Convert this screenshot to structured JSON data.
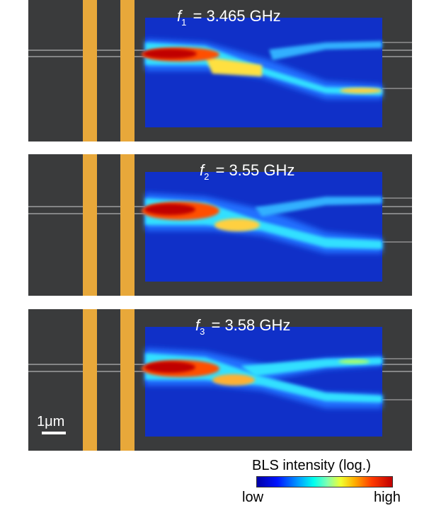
{
  "panels": [
    {
      "var": "f",
      "sub": "1",
      "value": "= 3.465 GHz"
    },
    {
      "var": "f",
      "sub": "2",
      "value": "= 3.55 GHz"
    },
    {
      "var": "f",
      "sub": "3",
      "value": "= 3.58 GHz"
    }
  ],
  "scale_bar": {
    "label": "1μm"
  },
  "colorbar": {
    "title": "BLS intensity (log.)",
    "low": "low",
    "high": "high",
    "colors": [
      "#0000a8",
      "#0014ff",
      "#00a8ff",
      "#00ffee",
      "#80ffb0",
      "#f0ff30",
      "#ffb000",
      "#ff3a00",
      "#c00000"
    ]
  },
  "colors": {
    "background": "#3a3b3c",
    "antenna": "#e8a83a",
    "waveguide": "#c8c8c8",
    "map_base": "#1030c8"
  }
}
